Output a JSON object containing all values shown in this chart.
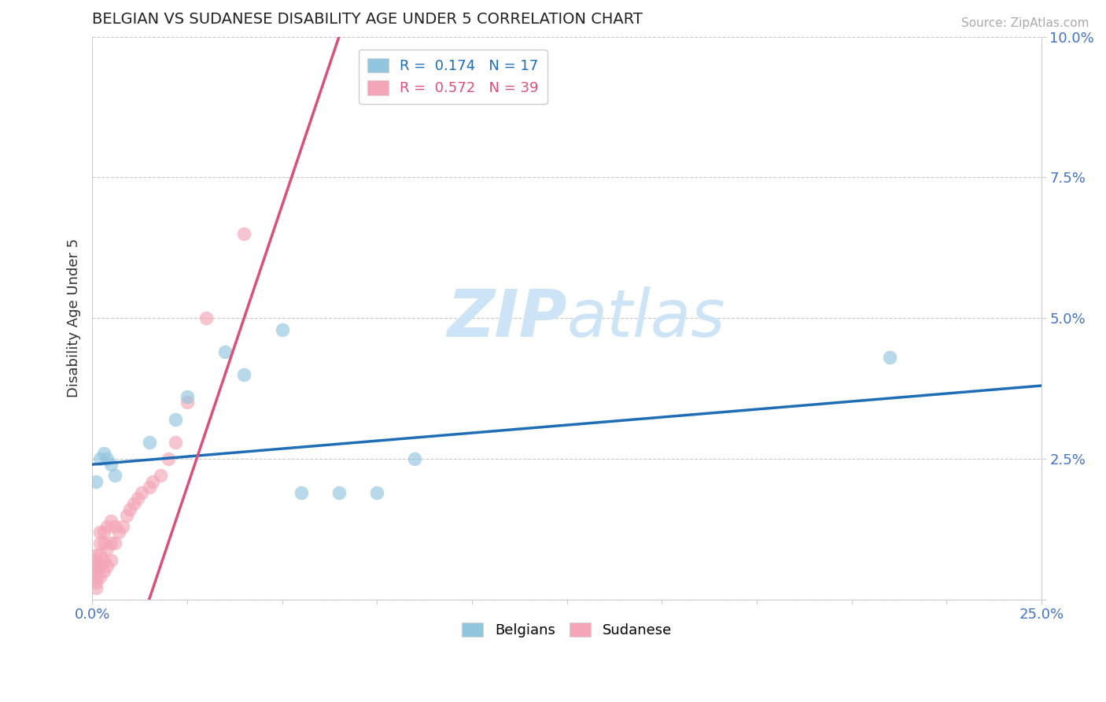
{
  "title": "BELGIAN VS SUDANESE DISABILITY AGE UNDER 5 CORRELATION CHART",
  "source": "Source: ZipAtlas.com",
  "ylabel": "Disability Age Under 5",
  "xlim": [
    0.0,
    0.25
  ],
  "ylim": [
    0.0,
    0.1
  ],
  "belgians_R": 0.174,
  "belgians_N": 17,
  "sudanese_R": 0.572,
  "sudanese_N": 39,
  "belgian_color": "#92c5de",
  "sudanese_color": "#f4a6b8",
  "belgian_line_color": "#1f6eb5",
  "sudanese_line_color": "#d9517a",
  "watermark_zip": "ZIP",
  "watermark_atlas": "atlas",
  "watermark_color": "#cce4f5",
  "background_color": "#ffffff",
  "grid_color": "#bbbbbb",
  "title_color": "#222222",
  "axis_label_color": "#333333",
  "tick_color": "#4472c4",
  "belgian_x": [
    0.001,
    0.002,
    0.003,
    0.004,
    0.005,
    0.006,
    0.015,
    0.022,
    0.025,
    0.04,
    0.05,
    0.055,
    0.065,
    0.075,
    0.085,
    0.21,
    0.035
  ],
  "belgian_y": [
    0.021,
    0.025,
    0.026,
    0.025,
    0.024,
    0.022,
    0.028,
    0.032,
    0.036,
    0.04,
    0.048,
    0.019,
    0.019,
    0.019,
    0.025,
    0.043,
    0.044
  ],
  "sudanese_x": [
    0.001,
    0.001,
    0.001,
    0.001,
    0.001,
    0.001,
    0.001,
    0.002,
    0.002,
    0.002,
    0.002,
    0.002,
    0.003,
    0.003,
    0.003,
    0.003,
    0.004,
    0.004,
    0.004,
    0.005,
    0.005,
    0.005,
    0.006,
    0.006,
    0.007,
    0.008,
    0.009,
    0.01,
    0.011,
    0.012,
    0.013,
    0.015,
    0.016,
    0.018,
    0.02,
    0.022,
    0.025,
    0.03,
    0.04
  ],
  "sudanese_y": [
    0.002,
    0.003,
    0.004,
    0.005,
    0.006,
    0.007,
    0.008,
    0.004,
    0.006,
    0.008,
    0.01,
    0.012,
    0.005,
    0.007,
    0.01,
    0.012,
    0.006,
    0.009,
    0.013,
    0.007,
    0.01,
    0.014,
    0.01,
    0.013,
    0.012,
    0.013,
    0.015,
    0.016,
    0.017,
    0.018,
    0.019,
    0.02,
    0.021,
    0.022,
    0.025,
    0.028,
    0.035,
    0.05,
    0.065
  ],
  "blue_line_x": [
    0.0,
    0.25
  ],
  "blue_line_y": [
    0.024,
    0.038
  ],
  "pink_line_x": [
    0.015,
    0.065
  ],
  "pink_line_y": [
    0.0,
    0.1
  ]
}
